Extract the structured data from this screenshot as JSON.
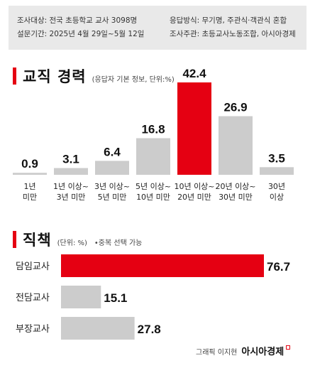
{
  "survey": {
    "target": "조사대상: 전국 초등학교 교사 3098명",
    "method": "응답방식: 무기명, 주관식·객관식 혼합",
    "period": "설문기간: 2025년 4월 29일~5월 12일",
    "host": "조사주관: 초등교사노동조합, 아시아경제"
  },
  "career_section": {
    "title": "교직 경력",
    "note": "(응답자 기본 정보, 단위:%)"
  },
  "duty_section": {
    "title": "직책",
    "note": "(단위: %)",
    "note2": "•중복 선택 가능"
  },
  "credit": {
    "graphic": "그래픽 이지현",
    "brand": "아시아경제"
  },
  "colors": {
    "highlight": "#e50012",
    "bar": "#cccccc",
    "survey_bg": "#e9e9e9"
  },
  "chart_data": [
    {
      "type": "bar",
      "categories": [
        "1년\n미만",
        "1년 이상~\n3년 미만",
        "3년 이상~\n5년 미만",
        "5년 이상~\n10년 미만",
        "10년 이상~\n20년 미만",
        "20년 이상~\n30년 미만",
        "30년\n이상"
      ],
      "values": [
        0.9,
        3.1,
        6.4,
        16.8,
        42.4,
        26.9,
        3.5
      ],
      "value_labels": [
        "0.9",
        "3.1",
        "6.4",
        "16.8",
        "42.4",
        "26.9",
        "3.5"
      ],
      "highlight_index": 4,
      "title": "교직 경력",
      "ylim": [
        0,
        42.4
      ],
      "grid": false
    },
    {
      "type": "bar",
      "orientation": "horizontal",
      "categories": [
        "담임교사",
        "전담교사",
        "부장교사"
      ],
      "values": [
        76.7,
        15.1,
        27.8
      ],
      "value_labels": [
        "76.7",
        "15.1",
        "27.8"
      ],
      "highlight_index": 0,
      "title": "직책",
      "xlim": [
        0,
        76.7
      ],
      "grid": false
    }
  ]
}
